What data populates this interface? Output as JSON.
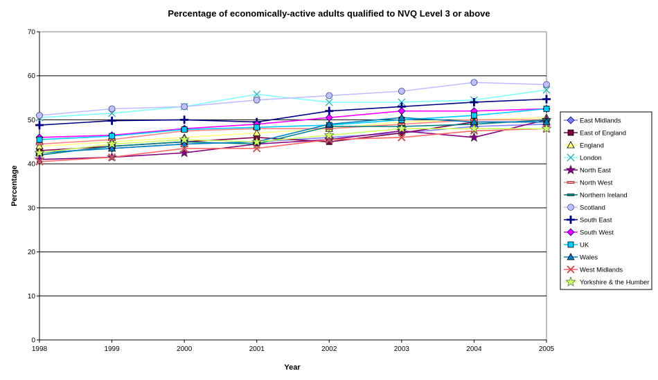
{
  "chart_data": {
    "type": "line",
    "title": "Percentage of economically-active adults qualified to NVQ Level 3 or above",
    "xlabel": "Year",
    "ylabel": "Percentage",
    "x": [
      "1998",
      "1999",
      "2000",
      "2001",
      "2002",
      "2003",
      "2004",
      "2005"
    ],
    "ylim": [
      0,
      70
    ],
    "yticks": [
      0,
      10,
      20,
      30,
      40,
      50,
      60,
      70
    ],
    "grid": "horizontal",
    "legend_position": "right",
    "series": [
      {
        "name": "East Midlands",
        "color": "#8080ff",
        "marker": "diamond",
        "values": [
          42.5,
          43.5,
          44.5,
          45,
          46,
          47,
          48.5,
          49
        ]
      },
      {
        "name": "East of England",
        "color": "#800040",
        "marker": "square",
        "values": [
          43,
          44,
          45,
          46,
          45,
          47,
          49.5,
          49.5
        ]
      },
      {
        "name": "England",
        "color": "#ffff80",
        "marker": "triangle",
        "values": [
          44,
          45,
          46,
          47,
          48,
          49.5,
          50,
          50.5
        ]
      },
      {
        "name": "London",
        "color": "#80ffff",
        "marker": "x",
        "values": [
          50.5,
          51.5,
          53,
          55.8,
          54,
          54,
          54.5,
          56.8
        ]
      },
      {
        "name": "North East",
        "color": "#800080",
        "marker": "star",
        "values": [
          41,
          41.5,
          42.5,
          44.5,
          45.5,
          47.5,
          46,
          50
        ]
      },
      {
        "name": "North West",
        "color": "#ff8080",
        "marker": "dash",
        "values": [
          44.5,
          45.5,
          47.5,
          48,
          48,
          49,
          50,
          50
        ]
      },
      {
        "name": "Northern Ireland",
        "color": "#008080",
        "marker": "dash",
        "values": [
          42,
          44,
          45,
          44.5,
          48.5,
          48.5,
          49,
          50
        ]
      },
      {
        "name": "Scotland",
        "color": "#c0c0ff",
        "marker": "circle",
        "values": [
          51,
          52.5,
          53,
          54.5,
          55.5,
          56.5,
          58.5,
          58
        ]
      },
      {
        "name": "South East",
        "color": "#000080",
        "marker": "plus",
        "values": [
          48.8,
          49.8,
          50,
          49.5,
          52,
          53,
          54,
          54.7
        ]
      },
      {
        "name": "South West",
        "color": "#ff00ff",
        "marker": "diamond",
        "values": [
          46,
          46.5,
          48,
          49,
          50.5,
          52,
          52,
          52.5
        ]
      },
      {
        "name": "UK",
        "color": "#00ccff",
        "marker": "square",
        "values": [
          45.5,
          46.3,
          47.8,
          48.3,
          48.8,
          50,
          51,
          52.5
        ]
      },
      {
        "name": "Wales",
        "color": "#0080c0",
        "marker": "triangle",
        "values": [
          42.5,
          43.5,
          44.5,
          45,
          49,
          50.5,
          49.5,
          49.5
        ]
      },
      {
        "name": "West Midlands",
        "color": "#ff6666",
        "marker": "x",
        "values": [
          40.5,
          41.5,
          43.5,
          43.5,
          45.5,
          46,
          47.5,
          48
        ]
      },
      {
        "name": "Yorkshire & the Humber",
        "color": "#ccff66",
        "marker": "star",
        "values": [
          42.5,
          44.5,
          45.5,
          45,
          46.5,
          48,
          48,
          48
        ]
      }
    ]
  }
}
